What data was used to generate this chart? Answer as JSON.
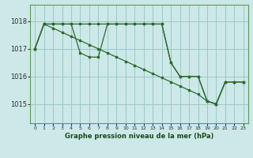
{
  "title": "Graphe pression niveau de la mer (hPa)",
  "background_color": "#cde8e8",
  "grid_color": "#9dc8c8",
  "line_color": "#2d6a2d",
  "xlim": [
    -0.5,
    23.5
  ],
  "ylim": [
    1014.3,
    1018.6
  ],
  "yticks": [
    1015,
    1016,
    1017,
    1018
  ],
  "xticks": [
    0,
    1,
    2,
    3,
    4,
    5,
    6,
    7,
    8,
    9,
    10,
    11,
    12,
    13,
    14,
    15,
    16,
    17,
    18,
    19,
    20,
    21,
    22,
    23
  ],
  "line1_x": [
    0,
    1,
    2,
    3,
    4,
    5,
    6,
    7,
    8,
    9,
    10,
    11,
    12,
    13,
    14,
    15,
    16,
    17,
    18,
    19,
    20,
    21,
    22,
    23
  ],
  "line1_y": [
    1017.0,
    1017.9,
    1017.9,
    1017.9,
    1017.9,
    1017.9,
    1017.9,
    1017.9,
    1017.9,
    1017.9,
    1017.9,
    1017.9,
    1017.9,
    1017.9,
    1017.9,
    1016.5,
    1016.0,
    1016.0,
    1016.0,
    1015.1,
    1015.0,
    1015.8,
    1015.8,
    1015.8
  ],
  "line2_x": [
    0,
    1,
    2,
    3,
    4,
    5,
    6,
    7,
    8,
    9,
    10,
    11,
    12,
    13,
    14,
    15,
    16,
    17,
    18,
    19,
    20,
    21,
    22,
    23
  ],
  "line2_y": [
    1017.0,
    1017.9,
    1017.75,
    1017.6,
    1017.45,
    1017.3,
    1017.15,
    1017.0,
    1016.85,
    1016.7,
    1016.55,
    1016.4,
    1016.25,
    1016.1,
    1015.95,
    1015.8,
    1015.65,
    1015.5,
    1015.35,
    1015.1,
    1015.0,
    1015.8,
    1015.8,
    1015.8
  ],
  "line3_x": [
    0,
    1,
    2,
    3,
    4,
    5,
    6,
    7,
    8,
    9,
    10,
    11,
    12,
    13,
    14,
    15,
    16,
    17,
    18,
    19,
    20,
    21,
    22,
    23
  ],
  "line3_y": [
    1017.0,
    1017.9,
    1017.9,
    1017.9,
    1017.9,
    1016.85,
    1016.7,
    1016.7,
    1017.9,
    1017.9,
    1017.9,
    1017.9,
    1017.9,
    1017.9,
    1017.9,
    1016.5,
    1016.0,
    1016.0,
    1016.0,
    1015.1,
    1015.0,
    1015.8,
    1015.8,
    1015.8
  ]
}
